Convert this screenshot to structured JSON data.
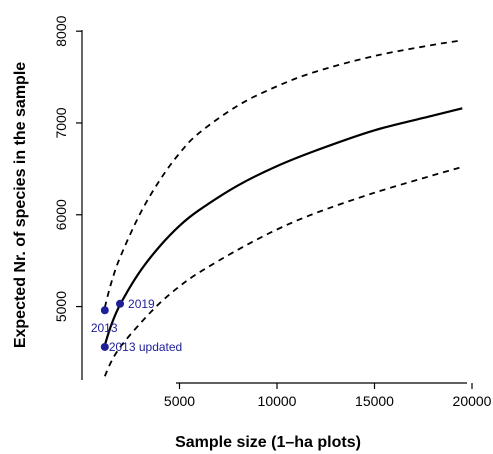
{
  "chart_data": {
    "type": "line",
    "xlabel": "Sample size (1–ha plots)",
    "ylabel": "Expected Nr. of species in the sample",
    "xlim": [
      0,
      20000
    ],
    "ylim": [
      4200,
      8100
    ],
    "x_ticks": [
      5000,
      10000,
      15000,
      20000
    ],
    "y_ticks": [
      5000,
      6000,
      7000,
      8000
    ],
    "x_tick_labels": [
      "5000",
      "10000",
      "15000",
      "20000"
    ],
    "y_tick_labels": [
      "5000",
      "6000",
      "7000",
      "8000"
    ],
    "grid": false,
    "series": [
      {
        "style": "solid",
        "x": [
          1170,
          1500,
          2000,
          3000,
          4000,
          5000,
          6000,
          8000,
          10000,
          12000,
          15000,
          18000,
          19500
        ],
        "y": [
          4580,
          4800,
          5040,
          5390,
          5660,
          5880,
          6050,
          6320,
          6530,
          6700,
          6920,
          7080,
          7160
        ]
      },
      {
        "style": "dashed",
        "x": [
          1170,
          1500,
          2000,
          3000,
          4000,
          5000,
          6000,
          8000,
          10000,
          12000,
          15000,
          18000,
          19500
        ],
        "y": [
          4990,
          5260,
          5560,
          6020,
          6380,
          6670,
          6890,
          7190,
          7400,
          7560,
          7730,
          7850,
          7900
        ]
      },
      {
        "style": "dashed",
        "x": [
          1170,
          1500,
          2000,
          3000,
          4000,
          5000,
          6000,
          8000,
          10000,
          12000,
          15000,
          18000,
          19500
        ],
        "y": [
          4240,
          4400,
          4570,
          4820,
          5040,
          5220,
          5370,
          5620,
          5840,
          6020,
          6240,
          6430,
          6520
        ]
      }
    ],
    "points": [
      {
        "x": 1170,
        "y": 4960,
        "label": "2013"
      },
      {
        "x": 1950,
        "y": 5030,
        "label": "2019"
      },
      {
        "x": 1170,
        "y": 4560,
        "label": "2013 updated"
      }
    ],
    "colors": {
      "points": "#1f1f99",
      "curves": "#000000"
    }
  }
}
